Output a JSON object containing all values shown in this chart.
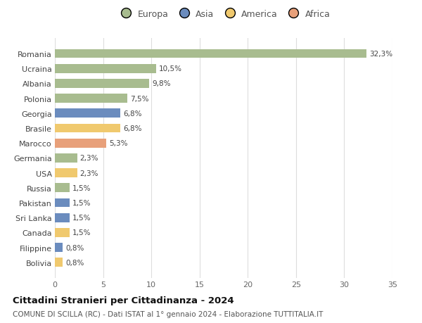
{
  "countries": [
    "Romania",
    "Ucraina",
    "Albania",
    "Polonia",
    "Georgia",
    "Brasile",
    "Marocco",
    "Germania",
    "USA",
    "Russia",
    "Pakistan",
    "Sri Lanka",
    "Canada",
    "Filippine",
    "Bolivia"
  ],
  "values": [
    32.3,
    10.5,
    9.8,
    7.5,
    6.8,
    6.8,
    5.3,
    2.3,
    2.3,
    1.5,
    1.5,
    1.5,
    1.5,
    0.8,
    0.8
  ],
  "labels": [
    "32,3%",
    "10,5%",
    "9,8%",
    "7,5%",
    "6,8%",
    "6,8%",
    "5,3%",
    "2,3%",
    "2,3%",
    "1,5%",
    "1,5%",
    "1,5%",
    "1,5%",
    "0,8%",
    "0,8%"
  ],
  "continents": [
    "Europa",
    "Europa",
    "Europa",
    "Europa",
    "Asia",
    "America",
    "Africa",
    "Europa",
    "America",
    "Europa",
    "Asia",
    "Asia",
    "America",
    "Asia",
    "America"
  ],
  "continent_colors": {
    "Europa": "#a8bc8f",
    "Asia": "#6b8cbe",
    "America": "#f0c96e",
    "Africa": "#e8a07a"
  },
  "legend_order": [
    "Europa",
    "Asia",
    "America",
    "Africa"
  ],
  "title": "Cittadini Stranieri per Cittadinanza - 2024",
  "subtitle": "COMUNE DI SCILLA (RC) - Dati ISTAT al 1° gennaio 2024 - Elaborazione TUTTITALIA.IT",
  "xlim": [
    0,
    35
  ],
  "xticks": [
    0,
    5,
    10,
    15,
    20,
    25,
    30,
    35
  ],
  "background_color": "#ffffff",
  "grid_color": "#dddddd",
  "bar_height": 0.6
}
